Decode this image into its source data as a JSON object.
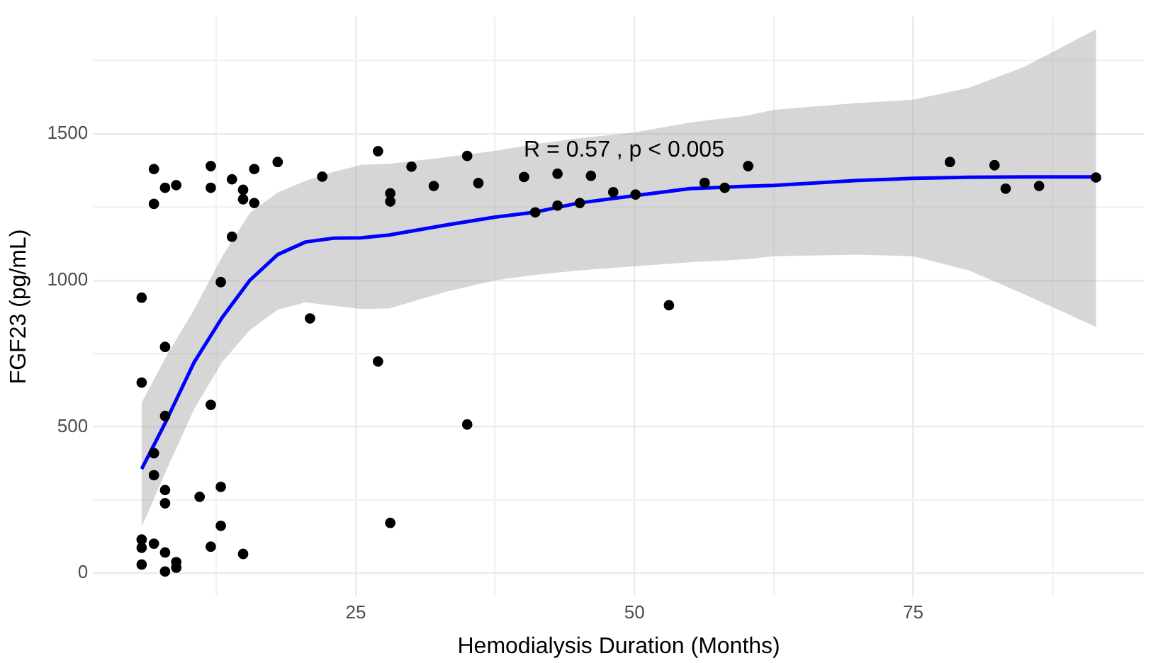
{
  "chart_data": {
    "type": "scatter",
    "xlabel": "Hemodialysis Duration (Months)",
    "ylabel": "FGF23 (pg/mL)",
    "annotations": [
      "R = 0.57 , p < 0.005"
    ],
    "xlim": [
      1.5,
      95.7
    ],
    "ylim": [
      -80,
      1900
    ],
    "xticks": [
      {
        "value": 12.5,
        "label": null
      },
      25,
      {
        "value": 37.5,
        "label": null
      },
      50,
      {
        "value": 62.5,
        "label": null
      },
      75,
      {
        "value": 87.5,
        "label": null
      }
    ],
    "yticks": [
      0,
      {
        "value": 250,
        "label": null
      },
      500,
      {
        "value": 750,
        "label": null
      },
      1000,
      {
        "value": 1250,
        "label": null
      },
      1500,
      {
        "value": 1750,
        "label": null
      }
    ],
    "grid": true,
    "legend": false,
    "series": [
      {
        "marker": "circle",
        "color": "#000000",
        "x": [
          6.9,
          12.0,
          7.9,
          8.9,
          12.0,
          13.9,
          15.9,
          18.0,
          6.9,
          14.9,
          14.9,
          15.9,
          22.0,
          13.9,
          12.9,
          5.8,
          20.9,
          7.9,
          5.8,
          7.9,
          12.0,
          6.9,
          6.9,
          7.9,
          7.9,
          11.0,
          12.9,
          12.9,
          5.8,
          5.8,
          6.9,
          7.9,
          12.0,
          14.9,
          5.8,
          7.9,
          8.9,
          8.9,
          27.0,
          35.0,
          30.0,
          28.1,
          28.1,
          32.0,
          36.0,
          40.1,
          43.1,
          46.1,
          41.1,
          43.1,
          45.1,
          48.1,
          50.1,
          56.3,
          58.1,
          60.2,
          53.1,
          27.0,
          35.0,
          28.1,
          78.3,
          82.3,
          83.3,
          86.3,
          91.4
        ],
        "values": [
          1380,
          1390,
          1316,
          1325,
          1316,
          1345,
          1380,
          1404,
          1261,
          1309,
          1277,
          1264,
          1354,
          1149,
          994,
          941,
          870,
          773,
          651,
          537,
          575,
          410,
          335,
          284,
          239,
          261,
          295,
          162,
          115,
          87,
          101,
          71,
          91,
          66,
          30,
          6,
          38,
          19,
          1441,
          1425,
          1388,
          1297,
          1269,
          1322,
          1332,
          1353,
          1364,
          1357,
          1232,
          1255,
          1264,
          1301,
          1293,
          1333,
          1316,
          1390,
          915,
          723,
          508,
          172,
          1404,
          1393,
          1313,
          1322,
          1351
        ]
      },
      {
        "type": "line",
        "marker": "none",
        "color": "#0000ff",
        "x": [
          5.8,
          8,
          10.5,
          13,
          15.5,
          18,
          20.5,
          23,
          25.5,
          28,
          33,
          37.5,
          41,
          45,
          50,
          55,
          60,
          62.5,
          70,
          75,
          80,
          85,
          91.4
        ],
        "values": [
          356,
          520,
          720,
          872,
          1000,
          1088,
          1131,
          1144,
          1145,
          1155,
          1188,
          1216,
          1232,
          1264,
          1289,
          1313,
          1321,
          1324,
          1341,
          1348,
          1352,
          1353,
          1353
        ],
        "upper": [
          583,
          740,
          900,
          1080,
          1230,
          1300,
          1340,
          1370,
          1394,
          1398,
          1420,
          1442,
          1465,
          1485,
          1505,
          1539,
          1562,
          1582,
          1605,
          1617,
          1657,
          1729,
          1857
        ],
        "lower": [
          159,
          350,
          560,
          720,
          830,
          900,
          925,
          913,
          902,
          904,
          960,
          1000,
          1018,
          1034,
          1048,
          1062,
          1072,
          1082,
          1088,
          1082,
          1034,
          952,
          841
        ]
      }
    ]
  }
}
